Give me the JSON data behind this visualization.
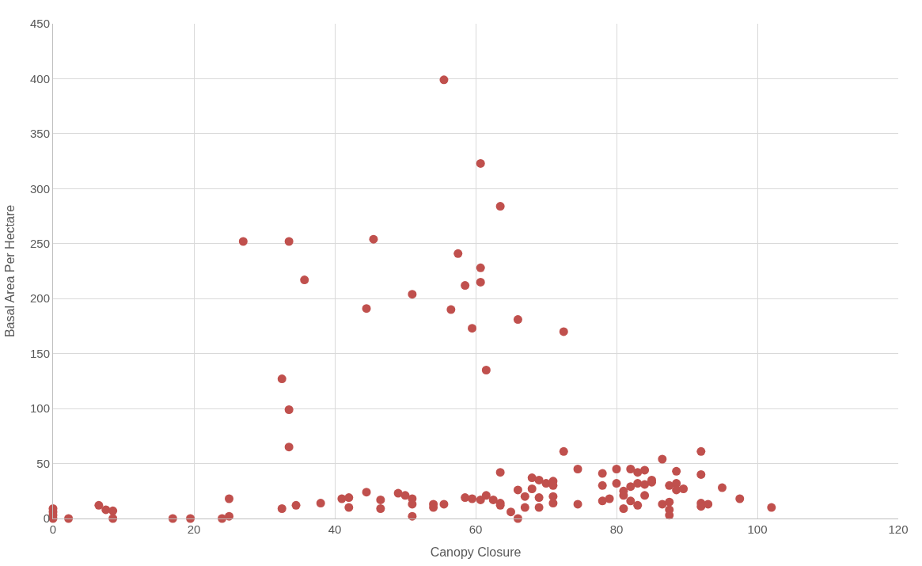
{
  "chart_data": {
    "type": "scatter",
    "xlabel": "Canopy Closure",
    "ylabel": "Basal Area Per Hectare",
    "x": [
      0,
      0,
      0,
      0,
      2.2,
      6.5,
      7.5,
      8.5,
      8.5,
      17,
      19.5,
      24,
      25,
      25,
      27,
      32.5,
      32.5,
      33.5,
      33.5,
      33.5,
      34.5,
      35.7,
      38,
      41,
      42,
      42,
      44.5,
      44.5,
      45.5,
      46.5,
      46.5,
      49,
      50,
      51,
      51,
      51,
      51,
      54,
      54,
      55.5,
      55.5,
      56.5,
      57.5,
      58.5,
      58.5,
      59.5,
      59.5,
      60.7,
      60.7,
      60.7,
      60.7,
      61.5,
      61.5,
      62.5,
      63.5,
      63.5,
      63.5,
      63.5,
      65,
      66,
      66,
      66,
      67,
      67,
      68,
      68,
      69,
      69,
      69,
      70,
      71,
      71,
      71,
      71,
      72.5,
      72.5,
      74.5,
      74.5,
      78,
      78,
      78,
      79,
      80,
      80,
      81,
      81,
      81,
      82,
      82,
      82,
      83,
      83,
      83,
      84,
      84,
      84,
      85,
      85,
      86.5,
      86.5,
      87.5,
      87.5,
      87.5,
      87.5,
      88.5,
      88.5,
      88.5,
      89.5,
      92,
      92,
      92,
      92,
      93,
      95,
      97.5,
      102
    ],
    "series": [
      {
        "color": "#c0504d",
        "values": [
          0,
          3,
          6,
          9,
          0,
          12,
          8,
          7,
          0,
          0,
          0,
          0,
          2,
          18,
          252,
          127,
          9,
          252,
          99,
          65,
          12,
          217,
          14,
          18,
          19,
          10,
          191,
          24,
          254,
          17,
          9,
          23,
          21,
          204,
          18,
          13,
          2,
          13,
          10,
          399,
          13,
          190,
          241,
          212,
          19,
          173,
          18,
          323,
          228,
          215,
          17,
          135,
          21,
          17,
          284,
          42,
          14,
          12,
          6,
          181,
          26,
          0,
          20,
          10,
          37,
          27,
          35,
          19,
          10,
          32,
          34,
          30,
          20,
          14,
          170,
          61,
          45,
          13,
          41,
          30,
          16,
          18,
          45,
          32,
          25,
          21,
          9,
          45,
          29,
          16,
          42,
          32,
          12,
          44,
          31,
          21,
          35,
          33,
          54,
          13,
          30,
          15,
          8,
          3,
          43,
          32,
          26,
          27,
          61,
          40,
          14,
          11,
          13,
          28,
          18,
          10
        ]
      }
    ],
    "xlim": [
      0,
      120
    ],
    "xticks": [
      0,
      20,
      40,
      60,
      80,
      100,
      120
    ],
    "ylim": [
      0,
      450
    ],
    "yticks": [
      0,
      50,
      100,
      150,
      200,
      250,
      300,
      350,
      400,
      450
    ],
    "grid": true,
    "marker": "circle"
  }
}
